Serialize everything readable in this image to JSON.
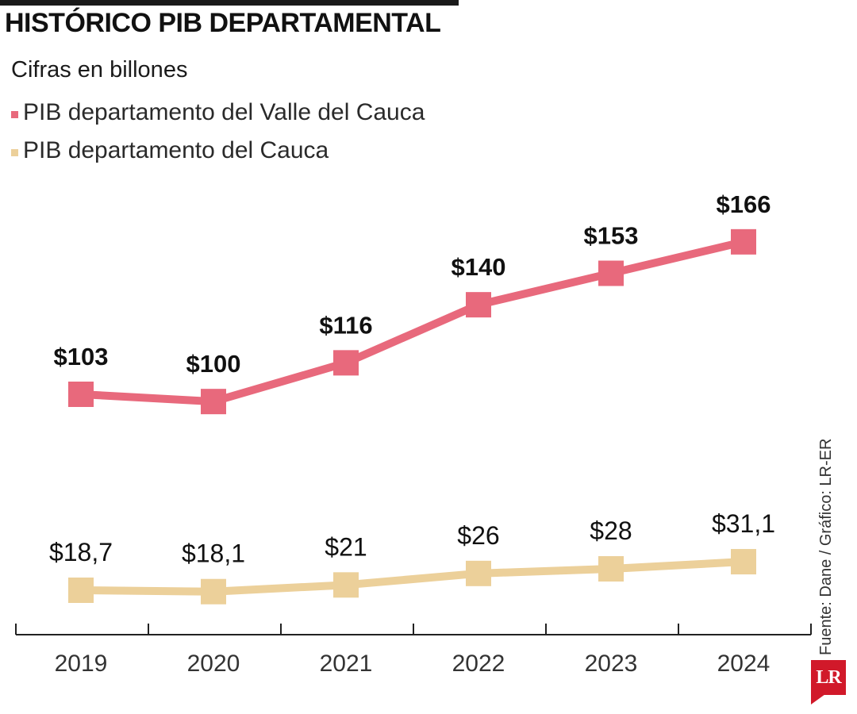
{
  "header": {
    "title": "HISTÓRICO PIB DEPARTAMENTAL",
    "subtitle": "Cifras en billones"
  },
  "legend": [
    {
      "label": "PIB departamento del Valle del Cauca",
      "color": "#e8697c"
    },
    {
      "label": "PIB departamento del Cauca",
      "color": "#ecd09a"
    }
  ],
  "source": "Fuente: Dane / Gráfico: LR-ER",
  "logo": {
    "text": "LR",
    "color": "#d1192a"
  },
  "chart_data": {
    "type": "line",
    "x": [
      "2019",
      "2020",
      "2021",
      "2022",
      "2023",
      "2024"
    ],
    "series": [
      {
        "name": "PIB departamento del Valle del Cauca",
        "color": "#e8697c",
        "values": [
          103,
          100,
          116,
          140,
          153,
          166
        ],
        "labels": [
          "$103",
          "$100",
          "$116",
          "$140",
          "$153",
          "$166"
        ],
        "label_style": "bold"
      },
      {
        "name": "PIB departamento del Cauca",
        "color": "#ecd09a",
        "values": [
          18.7,
          18.1,
          21,
          26,
          28,
          31.1
        ],
        "labels": [
          "$18,7",
          "$18,1",
          "$21",
          "$26",
          "$28",
          "$31,1"
        ],
        "label_style": "normal"
      }
    ],
    "title": "HISTÓRICO PIB DEPARTAMENTAL",
    "subtitle": "Cifras en billones",
    "xlabel": "",
    "ylabel": "",
    "grid": false,
    "legend_position": "top-left"
  }
}
